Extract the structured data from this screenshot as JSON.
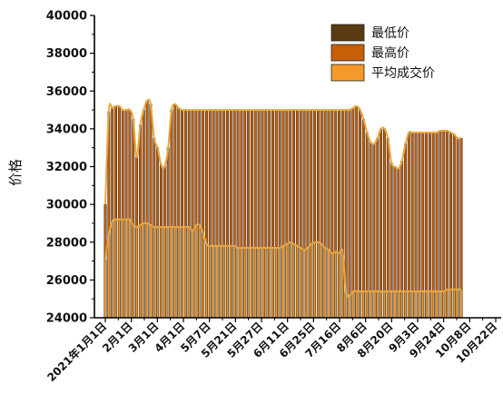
{
  "chart_data": {
    "type": "bar",
    "title": "",
    "xlabel": "",
    "ylabel": "价格",
    "ylim": [
      24000,
      40000
    ],
    "y_ticks": [
      24000,
      26000,
      28000,
      30000,
      32000,
      34000,
      36000,
      38000,
      40000
    ],
    "x_tick_labels": [
      "2021年1月1日",
      "2月1日",
      "3月1日",
      "4月1日",
      "5月7日",
      "5月21日",
      "5月27日",
      "6月11日",
      "6月25日",
      "7月16日",
      "8月6日",
      "8月20日",
      "9月3日",
      "9月24日",
      "10月8日",
      "10月22日"
    ],
    "legend": {
      "position": "top-right",
      "entries": [
        "最低价",
        "最高价",
        "平均成交价"
      ]
    },
    "colors": {
      "low": "#5a3a10",
      "high": "#c65f08",
      "avg": "#f59a2a",
      "line": "#e8a840",
      "outline": "#222222"
    },
    "series": [
      {
        "name": "最低价",
        "values": [
          24000,
          24000,
          24000,
          24000,
          24000,
          24000,
          24000,
          24000,
          24000,
          24000,
          24000,
          24000,
          24000,
          24000,
          24000,
          24000,
          24000,
          24000,
          24000,
          24000,
          24000,
          24000,
          24000,
          24000,
          24000,
          24000,
          24000,
          24000,
          24000,
          24000,
          24000,
          24000,
          24000,
          24000,
          24000,
          24000,
          24000,
          24000,
          24000,
          24000,
          24000,
          24000,
          24000,
          24000,
          24000,
          24000,
          24000,
          24000,
          24000,
          24000,
          24000,
          24000,
          24000,
          24000,
          24000,
          24000,
          24000,
          24000,
          24000,
          24000,
          24000,
          24000,
          24000,
          24000,
          24000,
          24000,
          24000,
          24000,
          24000,
          24000,
          24000,
          24000,
          24000,
          24000,
          24000,
          24000,
          24000,
          24000,
          24000,
          24000,
          24000,
          24000,
          24000,
          24000,
          24000,
          24000,
          24000,
          24000,
          24000,
          24000,
          24000,
          24000,
          24000,
          24000,
          24000,
          24000,
          24000,
          24000,
          24000,
          24000,
          24000,
          24000,
          24000
        ]
      },
      {
        "name": "最高价",
        "values": [
          30000,
          34900,
          35100,
          35200,
          35200,
          35000,
          35000,
          35000,
          34500,
          32500,
          34200,
          35000,
          35500,
          35300,
          33500,
          33000,
          32100,
          32000,
          33000,
          35000,
          35300,
          35100,
          35000,
          35000,
          35000,
          35000,
          35000,
          35000,
          35000,
          35000,
          35000,
          35000,
          35000,
          35000,
          35000,
          35000,
          35000,
          35000,
          35000,
          35000,
          35000,
          35000,
          35000,
          35000,
          35000,
          35000,
          35000,
          35000,
          35000,
          35000,
          35000,
          35000,
          35000,
          35000,
          35000,
          35000,
          35000,
          35000,
          35000,
          35000,
          35000,
          35000,
          35000,
          35000,
          35000,
          35000,
          35000,
          35000,
          35000,
          35000,
          35000,
          35100,
          35200,
          35000,
          34500,
          33800,
          33300,
          33200,
          33500,
          34000,
          34000,
          33500,
          32200,
          32000,
          31900,
          32300,
          33200,
          33800,
          33800,
          33800,
          33800,
          33800,
          33800,
          33800,
          33800,
          33800,
          33900,
          33900,
          33900,
          33800,
          33700,
          33500,
          33500
        ]
      },
      {
        "name": "平均成交价",
        "values": [
          27000,
          28400,
          29100,
          29200,
          29200,
          29200,
          29200,
          29200,
          28900,
          28800,
          28900,
          29000,
          29000,
          28900,
          28800,
          28800,
          28800,
          28800,
          28800,
          28800,
          28800,
          28800,
          28800,
          28800,
          28800,
          28600,
          28900,
          28900,
          28500,
          27900,
          27800,
          27800,
          27800,
          27800,
          27800,
          27800,
          27800,
          27800,
          27700,
          27700,
          27700,
          27700,
          27700,
          27700,
          27700,
          27700,
          27700,
          27700,
          27700,
          27700,
          27700,
          27800,
          27900,
          28000,
          27900,
          27800,
          27700,
          27600,
          27700,
          27900,
          28000,
          28000,
          27900,
          27700,
          27600,
          27400,
          27500,
          27400,
          27500,
          25300,
          25200,
          25400,
          25400,
          25400,
          25400,
          25400,
          25400,
          25400,
          25400,
          25400,
          25400,
          25400,
          25400,
          25400,
          25400,
          25400,
          25400,
          25400,
          25400,
          25400,
          25400,
          25400,
          25400,
          25400,
          25400,
          25400,
          25400,
          25400,
          25500,
          25500,
          25500,
          25500,
          25500
        ]
      }
    ]
  }
}
